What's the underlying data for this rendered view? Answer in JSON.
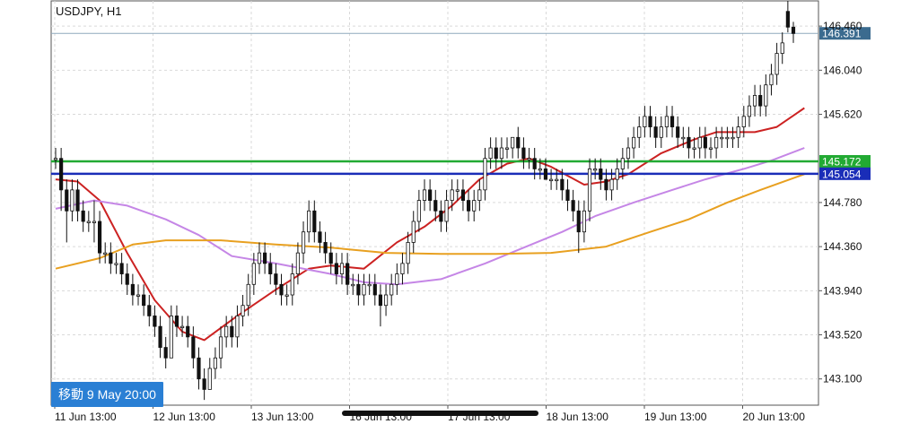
{
  "chart_data": {
    "type": "candlestick",
    "title": "USDJPY, H1",
    "y_axis_position": "right",
    "ylim": [
      142.85,
      146.7
    ],
    "yticks": [
      "146.460",
      "146.040",
      "145.620",
      "144.780",
      "144.360",
      "143.940",
      "143.520",
      "143.100"
    ],
    "yticks_values": [
      146.46,
      146.04,
      145.62,
      144.78,
      144.36,
      143.94,
      143.52,
      143.1
    ],
    "xticks": [
      "11 Jun 13:00",
      "12 Jun 13:00",
      "13 Jun 13:00",
      "16 Jun 13:00",
      "17 Jun 13:00",
      "18 Jun 13:00",
      "19 Jun 13:00",
      "20 Jun 13:00"
    ],
    "grid": true,
    "current_price": {
      "label": "146.391",
      "value": 146.391,
      "color": "#3b6b8f"
    },
    "levels": [
      {
        "label": "145.172",
        "value": 145.172,
        "color": "#22aa33"
      },
      {
        "label": "145.054",
        "value": 145.054,
        "color": "#1a2db8"
      }
    ],
    "moving_averages": [
      {
        "color": "#cc2222",
        "anchors": [
          [
            0,
            145.0
          ],
          [
            4,
            144.98
          ],
          [
            8,
            144.8
          ],
          [
            13,
            144.3
          ],
          [
            18,
            143.85
          ],
          [
            23,
            143.55
          ],
          [
            27,
            143.47
          ],
          [
            33,
            143.7
          ],
          [
            40,
            143.95
          ],
          [
            46,
            144.15
          ],
          [
            50,
            144.18
          ],
          [
            56,
            144.15
          ],
          [
            62,
            144.4
          ],
          [
            67,
            144.55
          ],
          [
            72,
            144.75
          ],
          [
            77,
            145.0
          ],
          [
            82,
            145.15
          ],
          [
            86,
            145.2
          ],
          [
            90,
            145.12
          ],
          [
            96,
            144.95
          ],
          [
            100,
            144.98
          ],
          [
            104,
            145.05
          ],
          [
            110,
            145.25
          ],
          [
            116,
            145.38
          ],
          [
            120,
            145.45
          ],
          [
            127,
            145.45
          ],
          [
            131,
            145.5
          ],
          [
            136,
            145.68
          ]
        ]
      },
      {
        "color": "#c586e6",
        "anchors": [
          [
            0,
            144.72
          ],
          [
            7,
            144.8
          ],
          [
            13,
            144.75
          ],
          [
            20,
            144.62
          ],
          [
            26,
            144.47
          ],
          [
            32,
            144.27
          ],
          [
            40,
            144.2
          ],
          [
            50,
            144.1
          ],
          [
            56,
            144.02
          ],
          [
            62,
            144.0
          ],
          [
            70,
            144.05
          ],
          [
            78,
            144.2
          ],
          [
            85,
            144.35
          ],
          [
            92,
            144.5
          ],
          [
            98,
            144.65
          ],
          [
            105,
            144.78
          ],
          [
            112,
            144.9
          ],
          [
            118,
            145.0
          ],
          [
            125,
            145.1
          ],
          [
            130,
            145.18
          ],
          [
            136,
            145.3
          ]
        ]
      },
      {
        "color": "#e8a020",
        "anchors": [
          [
            0,
            144.15
          ],
          [
            8,
            144.25
          ],
          [
            14,
            144.38
          ],
          [
            20,
            144.42
          ],
          [
            30,
            144.42
          ],
          [
            40,
            144.38
          ],
          [
            50,
            144.35
          ],
          [
            60,
            144.3
          ],
          [
            70,
            144.29
          ],
          [
            80,
            144.29
          ],
          [
            90,
            144.3
          ],
          [
            100,
            144.36
          ],
          [
            108,
            144.5
          ],
          [
            115,
            144.62
          ],
          [
            122,
            144.78
          ],
          [
            128,
            144.9
          ],
          [
            136,
            145.05
          ]
        ]
      }
    ],
    "candles_ohlc": [
      [
        145.2,
        145.3,
        145.1,
        145.2
      ],
      [
        145.2,
        145.3,
        144.7,
        144.9
      ],
      [
        144.9,
        145.0,
        144.4,
        144.7
      ],
      [
        144.7,
        145.0,
        144.6,
        144.9
      ],
      [
        144.9,
        145.0,
        144.6,
        144.7
      ],
      [
        144.7,
        144.8,
        144.5,
        144.6
      ],
      [
        144.6,
        144.7,
        144.5,
        144.6
      ],
      [
        144.6,
        144.8,
        144.4,
        144.6
      ],
      [
        144.6,
        144.7,
        144.2,
        144.3
      ],
      [
        144.3,
        144.4,
        144.2,
        144.3
      ],
      [
        144.3,
        144.4,
        144.1,
        144.2
      ],
      [
        144.2,
        144.3,
        144.1,
        144.2
      ],
      [
        144.2,
        144.3,
        144.0,
        144.1
      ],
      [
        144.1,
        144.2,
        143.9,
        144.0
      ],
      [
        144.0,
        144.1,
        143.8,
        143.9
      ],
      [
        143.9,
        144.0,
        143.8,
        143.9
      ],
      [
        143.9,
        144.0,
        143.7,
        143.8
      ],
      [
        143.8,
        143.9,
        143.6,
        143.7
      ],
      [
        143.7,
        143.8,
        143.5,
        143.6
      ],
      [
        143.6,
        143.7,
        143.3,
        143.4
      ],
      [
        143.4,
        143.5,
        143.2,
        143.3
      ],
      [
        143.3,
        143.8,
        143.3,
        143.7
      ],
      [
        143.7,
        143.8,
        143.5,
        143.6
      ],
      [
        143.6,
        143.7,
        143.5,
        143.6
      ],
      [
        143.6,
        143.7,
        143.4,
        143.5
      ],
      [
        143.5,
        143.6,
        143.2,
        143.3
      ],
      [
        143.3,
        143.4,
        143.0,
        143.1
      ],
      [
        143.1,
        143.2,
        142.9,
        143.0
      ],
      [
        143.0,
        143.3,
        143.0,
        143.2
      ],
      [
        143.2,
        143.4,
        143.1,
        143.3
      ],
      [
        143.3,
        143.6,
        143.2,
        143.5
      ],
      [
        143.5,
        143.7,
        143.4,
        143.6
      ],
      [
        143.6,
        143.7,
        143.4,
        143.5
      ],
      [
        143.5,
        143.8,
        143.4,
        143.7
      ],
      [
        143.7,
        143.9,
        143.6,
        143.8
      ],
      [
        143.8,
        144.1,
        143.7,
        144.0
      ],
      [
        144.0,
        144.3,
        143.9,
        144.2
      ],
      [
        144.2,
        144.4,
        144.1,
        144.3
      ],
      [
        144.3,
        144.4,
        144.1,
        144.2
      ],
      [
        144.2,
        144.3,
        144.0,
        144.1
      ],
      [
        144.1,
        144.2,
        143.9,
        144.0
      ],
      [
        144.0,
        144.1,
        143.8,
        143.9
      ],
      [
        143.9,
        144.0,
        143.8,
        143.9
      ],
      [
        143.9,
        144.2,
        143.8,
        144.1
      ],
      [
        144.1,
        144.4,
        144.0,
        144.3
      ],
      [
        144.3,
        144.6,
        144.2,
        144.5
      ],
      [
        144.5,
        144.8,
        144.4,
        144.7
      ],
      [
        144.7,
        144.8,
        144.4,
        144.5
      ],
      [
        144.5,
        144.6,
        144.3,
        144.4
      ],
      [
        144.4,
        144.5,
        144.2,
        144.3
      ],
      [
        144.3,
        144.4,
        144.1,
        144.2
      ],
      [
        144.2,
        144.3,
        144.0,
        144.1
      ],
      [
        144.1,
        144.3,
        144.0,
        144.2
      ],
      [
        144.2,
        144.3,
        143.9,
        144.0
      ],
      [
        144.0,
        144.1,
        143.9,
        144.0
      ],
      [
        144.0,
        144.1,
        143.8,
        143.9
      ],
      [
        143.9,
        144.1,
        143.8,
        144.0
      ],
      [
        144.0,
        144.1,
        143.9,
        144.0
      ],
      [
        144.0,
        144.1,
        143.8,
        143.9
      ],
      [
        143.9,
        144.0,
        143.6,
        143.8
      ],
      [
        143.8,
        144.0,
        143.7,
        143.9
      ],
      [
        143.9,
        144.1,
        143.8,
        144.0
      ],
      [
        144.0,
        144.2,
        143.9,
        144.1
      ],
      [
        144.1,
        144.3,
        144.0,
        144.2
      ],
      [
        144.2,
        144.5,
        144.1,
        144.4
      ],
      [
        144.4,
        144.7,
        144.3,
        144.6
      ],
      [
        144.6,
        144.9,
        144.5,
        144.8
      ],
      [
        144.8,
        145.0,
        144.7,
        144.9
      ],
      [
        144.9,
        145.0,
        144.7,
        144.8
      ],
      [
        144.8,
        144.9,
        144.6,
        144.7
      ],
      [
        144.7,
        144.8,
        144.5,
        144.6
      ],
      [
        144.6,
        144.9,
        144.5,
        144.8
      ],
      [
        144.8,
        145.0,
        144.7,
        144.9
      ],
      [
        144.9,
        145.0,
        144.8,
        144.9
      ],
      [
        144.9,
        145.0,
        144.7,
        144.8
      ],
      [
        144.8,
        144.9,
        144.6,
        144.7
      ],
      [
        144.7,
        144.9,
        144.6,
        144.8
      ],
      [
        144.8,
        145.0,
        144.7,
        144.9
      ],
      [
        144.9,
        145.3,
        144.8,
        145.2
      ],
      [
        145.2,
        145.4,
        145.1,
        145.3
      ],
      [
        145.3,
        145.4,
        145.1,
        145.2
      ],
      [
        145.2,
        145.4,
        145.1,
        145.3
      ],
      [
        145.3,
        145.4,
        145.2,
        145.3
      ],
      [
        145.3,
        145.4,
        145.2,
        145.4
      ],
      [
        145.4,
        145.5,
        145.2,
        145.3
      ],
      [
        145.3,
        145.4,
        145.1,
        145.2
      ],
      [
        145.2,
        145.3,
        145.1,
        145.2
      ],
      [
        145.2,
        145.3,
        145.0,
        145.1
      ],
      [
        145.1,
        145.2,
        145.0,
        145.1
      ],
      [
        145.1,
        145.2,
        145.0,
        145.0
      ],
      [
        145.0,
        145.1,
        144.9,
        145.0
      ],
      [
        145.0,
        145.1,
        144.9,
        145.0
      ],
      [
        145.0,
        145.1,
        144.8,
        144.9
      ],
      [
        144.9,
        145.0,
        144.7,
        144.8
      ],
      [
        144.8,
        144.9,
        144.6,
        144.7
      ],
      [
        144.7,
        144.8,
        144.3,
        144.5
      ],
      [
        144.5,
        144.8,
        144.4,
        144.7
      ],
      [
        144.7,
        145.2,
        144.6,
        145.1
      ],
      [
        145.1,
        145.2,
        145.0,
        145.1
      ],
      [
        145.1,
        145.2,
        144.9,
        145.0
      ],
      [
        145.0,
        145.1,
        144.8,
        144.9
      ],
      [
        144.9,
        145.1,
        144.8,
        145.0
      ],
      [
        145.0,
        145.2,
        144.9,
        145.1
      ],
      [
        145.1,
        145.3,
        145.0,
        145.2
      ],
      [
        145.2,
        145.4,
        145.1,
        145.3
      ],
      [
        145.3,
        145.5,
        145.2,
        145.4
      ],
      [
        145.4,
        145.6,
        145.3,
        145.5
      ],
      [
        145.5,
        145.7,
        145.4,
        145.6
      ],
      [
        145.6,
        145.7,
        145.4,
        145.5
      ],
      [
        145.5,
        145.6,
        145.3,
        145.4
      ],
      [
        145.4,
        145.6,
        145.3,
        145.5
      ],
      [
        145.5,
        145.7,
        145.4,
        145.6
      ],
      [
        145.6,
        145.7,
        145.4,
        145.5
      ],
      [
        145.5,
        145.6,
        145.3,
        145.4
      ],
      [
        145.4,
        145.5,
        145.3,
        145.4
      ],
      [
        145.4,
        145.5,
        145.2,
        145.3
      ],
      [
        145.3,
        145.4,
        145.2,
        145.3
      ],
      [
        145.3,
        145.5,
        145.2,
        145.4
      ],
      [
        145.4,
        145.5,
        145.2,
        145.3
      ],
      [
        145.3,
        145.4,
        145.2,
        145.3
      ],
      [
        145.3,
        145.5,
        145.2,
        145.4
      ],
      [
        145.4,
        145.5,
        145.3,
        145.4
      ],
      [
        145.4,
        145.5,
        145.3,
        145.4
      ],
      [
        145.4,
        145.5,
        145.3,
        145.4
      ],
      [
        145.4,
        145.6,
        145.3,
        145.5
      ],
      [
        145.5,
        145.7,
        145.4,
        145.6
      ],
      [
        145.6,
        145.8,
        145.5,
        145.7
      ],
      [
        145.7,
        145.9,
        145.6,
        145.8
      ],
      [
        145.8,
        145.9,
        145.6,
        145.7
      ],
      [
        145.7,
        146.0,
        145.6,
        145.9
      ],
      [
        145.9,
        146.1,
        145.8,
        146.0
      ],
      [
        146.0,
        146.3,
        145.9,
        146.2
      ],
      [
        146.2,
        146.4,
        146.1,
        146.3
      ],
      [
        146.6,
        146.7,
        146.4,
        146.45
      ],
      [
        146.45,
        146.5,
        146.3,
        146.39
      ]
    ]
  },
  "nav_badge": {
    "label": "移動 9 May 20:00",
    "color": "#2a7fd4"
  }
}
